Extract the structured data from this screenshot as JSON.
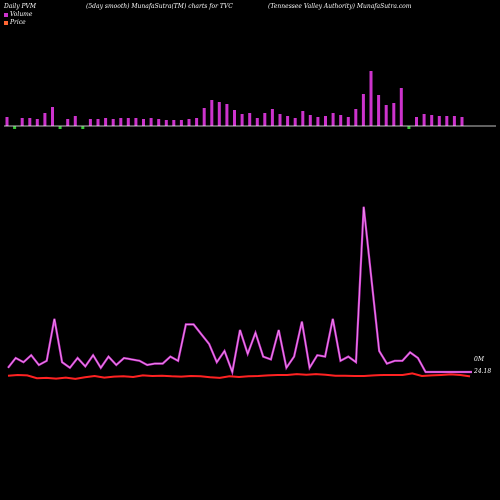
{
  "header": {
    "left": "Daily PVM",
    "center": "(5day smooth) MunafaSutra(TM) charts for TVC",
    "right": "(Tennessee  Valley Authority) MunafaSutra.com"
  },
  "legend": [
    {
      "label": "Volume",
      "color": "#cc33cc"
    },
    {
      "label": "Price",
      "color": "#ff6633"
    }
  ],
  "colors": {
    "background": "#000000",
    "volume_up": "#cc33cc",
    "volume_down": "#33cc33",
    "baseline": "#ffffff",
    "volume_line": "#cc33cc",
    "price_line": "#ff2222"
  },
  "chart_data": {
    "type": "bar+line",
    "volume_bars": {
      "values": [
        9,
        9,
        8,
        8,
        7,
        13,
        19,
        12,
        7,
        10,
        10,
        7,
        7,
        8,
        7,
        8,
        8,
        8,
        7,
        8,
        7,
        6,
        6,
        6,
        7,
        8,
        18,
        26,
        24,
        22,
        16,
        12,
        13,
        8,
        13,
        17,
        12,
        10,
        8,
        15,
        11,
        9,
        10,
        13,
        11,
        9,
        17,
        32,
        55,
        31,
        21,
        23,
        38,
        22,
        9,
        12,
        11,
        10,
        10,
        10,
        9
      ],
      "direction": [
        "up",
        "down",
        "up",
        "up",
        "up",
        "up",
        "up",
        "down",
        "up",
        "up",
        "down",
        "up",
        "up",
        "up",
        "up",
        "up",
        "up",
        "up",
        "up",
        "up",
        "up",
        "up",
        "up",
        "up",
        "up",
        "up",
        "up",
        "up",
        "up",
        "up",
        "up",
        "up",
        "up",
        "up",
        "up",
        "up",
        "up",
        "up",
        "up",
        "up",
        "up",
        "up",
        "up",
        "up",
        "up",
        "up",
        "up",
        "up",
        "up",
        "up",
        "up",
        "up",
        "up",
        "down",
        "up",
        "up",
        "up",
        "up",
        "up",
        "up",
        "up"
      ]
    },
    "volume_line": {
      "values": [
        3,
        10,
        7,
        12,
        5,
        8,
        38,
        7,
        3,
        10,
        4,
        12,
        3,
        11,
        5,
        10,
        9,
        8,
        5,
        6,
        6,
        11,
        8,
        34,
        34,
        27,
        20,
        7,
        15,
        0,
        30,
        13,
        28,
        11,
        9,
        30,
        3,
        11,
        36,
        3,
        12,
        11,
        38,
        8,
        11,
        7,
        118,
        66,
        15,
        6,
        8,
        8,
        14,
        10,
        0,
        0,
        0,
        0,
        0,
        0,
        0
      ],
      "last_label": "0M"
    },
    "price_line": {
      "values": [
        24.4,
        24.6,
        24.5,
        23.6,
        23.7,
        23.5,
        23.8,
        23.4,
        23.9,
        24.3,
        23.8,
        24.1,
        24.2,
        24.0,
        24.5,
        24.3,
        24.4,
        24.2,
        24.1,
        24.3,
        24.2,
        23.9,
        23.7,
        24.2,
        24.0,
        24.2,
        24.3,
        24.5,
        24.6,
        24.6,
        24.9,
        24.7,
        24.9,
        24.7,
        24.4,
        24.4,
        24.3,
        24.3,
        24.5,
        24.6,
        24.6,
        24.6,
        25.1,
        24.3,
        24.5,
        24.6,
        24.8,
        24.6,
        24.18
      ],
      "last_label": "24.18"
    }
  }
}
